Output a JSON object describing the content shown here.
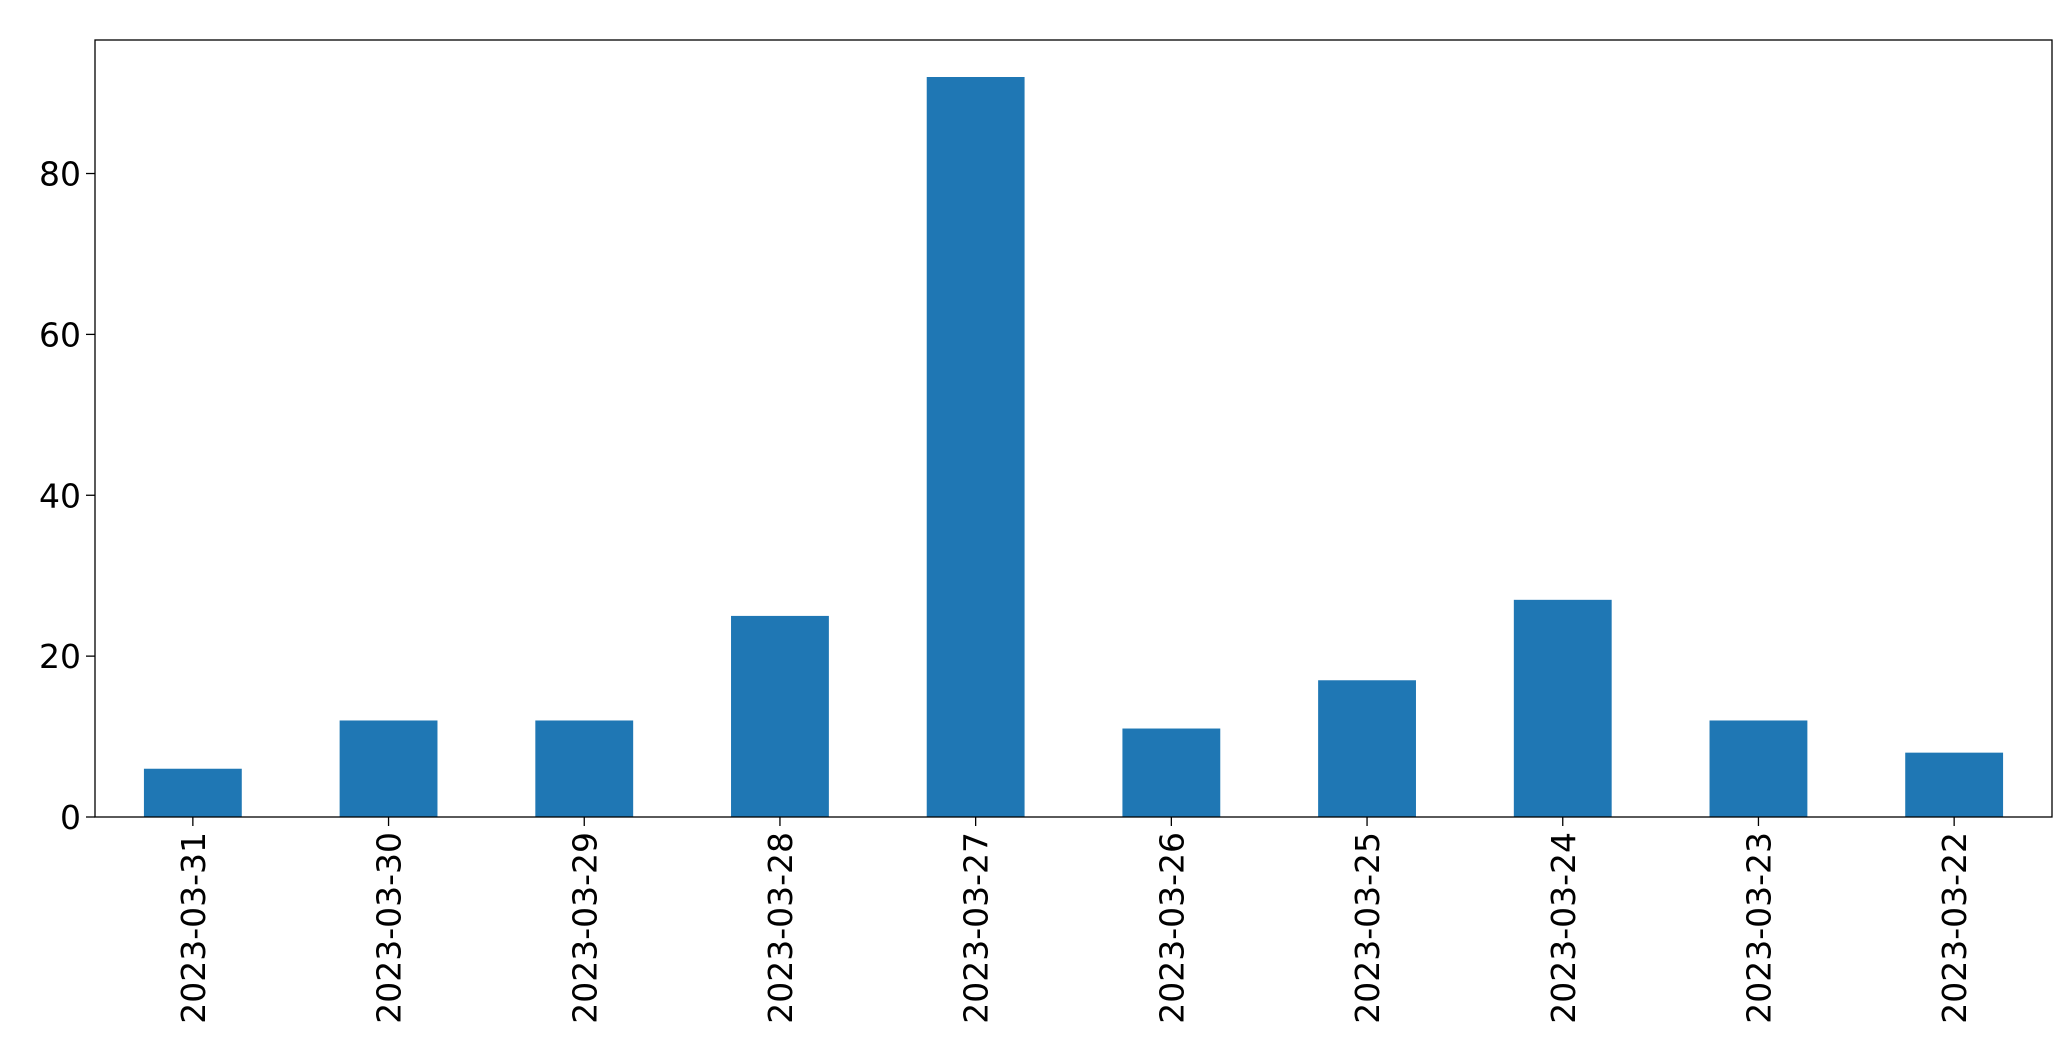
{
  "chart_data": {
    "type": "bar",
    "categories": [
      "2023-03-31",
      "2023-03-30",
      "2023-03-29",
      "2023-03-28",
      "2023-03-27",
      "2023-03-26",
      "2023-03-25",
      "2023-03-24",
      "2023-03-23",
      "2023-03-22"
    ],
    "values": [
      6,
      12,
      12,
      25,
      92,
      11,
      17,
      27,
      12,
      8
    ],
    "color": "#1f77b4",
    "ylim": [
      0,
      96.6
    ],
    "yticks": [
      0,
      20,
      40,
      60,
      80
    ],
    "grid": false
  }
}
